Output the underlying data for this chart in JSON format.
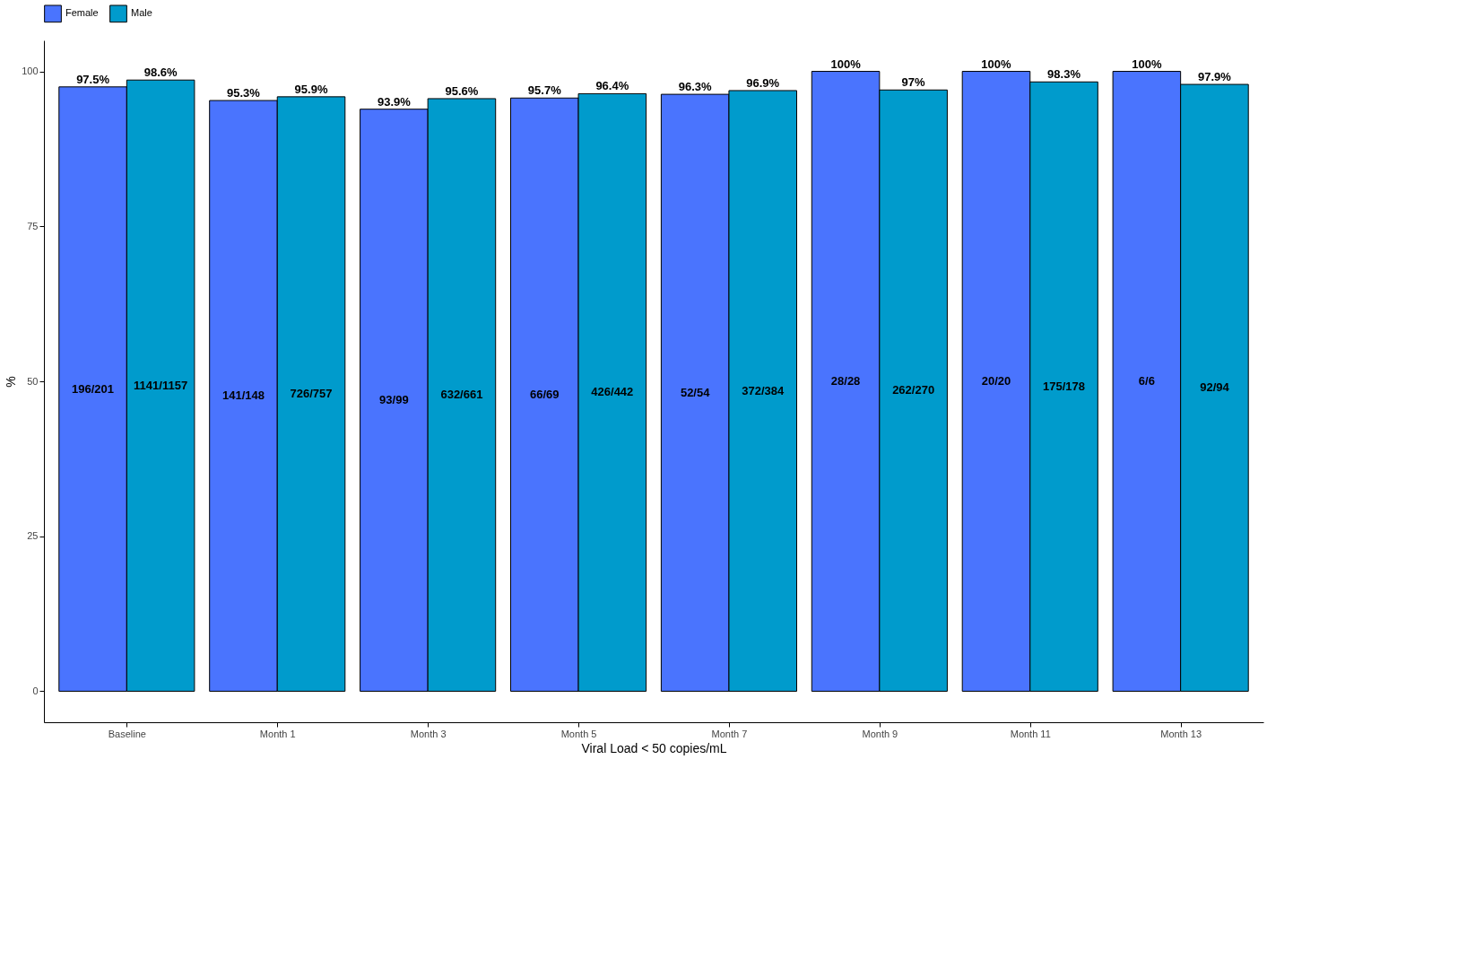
{
  "chart_data": {
    "type": "bar",
    "categories": [
      "Baseline",
      "Month 1",
      "Month 3",
      "Month 5",
      "Month 7",
      "Month 9",
      "Month 11",
      "Month 13"
    ],
    "series": [
      {
        "name": "Female",
        "color": "#4a74fe",
        "values": [
          97.5,
          95.3,
          93.9,
          95.7,
          96.3,
          100,
          100,
          100
        ],
        "value_labels": [
          "97.5%",
          "95.3%",
          "93.9%",
          "95.7%",
          "96.3%",
          "100%",
          "100%",
          "100%"
        ]
      },
      {
        "name": "Male",
        "color": "#009bcc",
        "values": [
          98.6,
          95.9,
          95.6,
          96.4,
          96.9,
          97,
          98.3,
          97.9
        ],
        "value_labels": [
          "98.6%",
          "95.9%",
          "95.6%",
          "96.4%",
          "96.9%",
          "97%",
          "98.3%",
          "97.9%"
        ]
      }
    ],
    "annotations": [
      "196/201",
      "1141/1157",
      "141/148",
      "726/757",
      "93/99",
      "632/661",
      "66/69",
      "426/442",
      "52/54",
      "372/384",
      "28/28",
      "262/270",
      "20/20",
      "175/178",
      "6/6",
      "92/94"
    ],
    "xlabel": "Viral Load < 50 copies/mL",
    "ylabel": "%",
    "ylim": [
      -5,
      105
    ],
    "yticks": [
      0,
      25,
      50,
      75,
      100
    ],
    "legend": "top",
    "grid": false
  }
}
